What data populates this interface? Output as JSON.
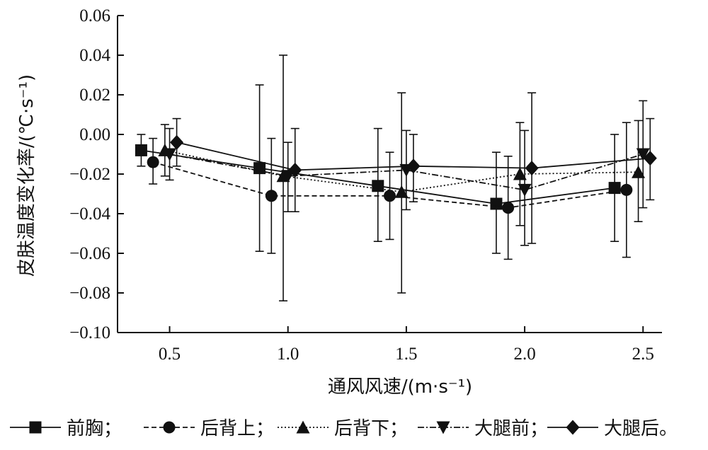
{
  "chart_data": {
    "type": "line",
    "ylabel": "皮肤温度变化率/(℃·s⁻¹)",
    "xlabel": "通风风速/(m·s⁻¹)",
    "xlim": [
      0.28,
      2.58
    ],
    "ylim": [
      -0.1,
      0.06
    ],
    "xticks": [
      0.5,
      1.0,
      1.5,
      2.0,
      2.5
    ],
    "xtick_labels": [
      "0.5",
      "1.0",
      "1.5",
      "2.0",
      "2.5"
    ],
    "yticks": [
      0.06,
      0.04,
      0.02,
      0.0,
      -0.02,
      -0.04,
      -0.06,
      -0.08,
      -0.1
    ],
    "ytick_labels": [
      "0.06",
      "0.04",
      "0.02",
      "0.00",
      "−0.02",
      "−0.04",
      "−0.06",
      "−0.08",
      "−0.10"
    ],
    "grid": false,
    "legend_position": "bottom",
    "series": [
      {
        "name": "前胸",
        "marker": "square",
        "line_style": "solid",
        "x": [
          0.38,
          0.88,
          1.38,
          1.88,
          2.38
        ],
        "y": [
          -0.008,
          -0.017,
          -0.026,
          -0.035,
          -0.027
        ],
        "err_low": [
          -0.016,
          -0.059,
          -0.054,
          -0.06,
          -0.054
        ],
        "err_high": [
          0.0,
          0.025,
          0.003,
          -0.009,
          0.0
        ]
      },
      {
        "name": "后背上",
        "marker": "circle",
        "line_style": "dashed",
        "x": [
          0.43,
          0.93,
          1.43,
          1.93,
          2.43
        ],
        "y": [
          -0.014,
          -0.031,
          -0.031,
          -0.037,
          -0.028
        ],
        "err_low": [
          -0.025,
          -0.06,
          -0.053,
          -0.063,
          -0.062
        ],
        "err_high": [
          -0.002,
          -0.002,
          -0.009,
          -0.011,
          0.006
        ]
      },
      {
        "name": "后背下",
        "marker": "triangle-up",
        "line_style": "dotted",
        "x": [
          0.48,
          0.98,
          1.48,
          1.98,
          2.48
        ],
        "y": [
          -0.008,
          -0.021,
          -0.029,
          -0.02,
          -0.019
        ],
        "err_low": [
          -0.021,
          -0.084,
          -0.08,
          -0.046,
          -0.044
        ],
        "err_high": [
          0.005,
          0.04,
          0.021,
          0.006,
          0.007
        ]
      },
      {
        "name": "大腿前",
        "marker": "triangle-down",
        "line_style": "dash-dot",
        "x": [
          0.5,
          1.0,
          1.5,
          2.0,
          2.5
        ],
        "y": [
          -0.01,
          -0.021,
          -0.018,
          -0.028,
          -0.01
        ],
        "err_low": [
          -0.023,
          -0.039,
          -0.038,
          -0.056,
          -0.037
        ],
        "err_high": [
          0.003,
          -0.004,
          0.002,
          0.002,
          0.017
        ]
      },
      {
        "name": "大腿后",
        "marker": "diamond",
        "line_style": "solid",
        "x": [
          0.53,
          1.03,
          1.53,
          2.03,
          2.53
        ],
        "y": [
          -0.004,
          -0.018,
          -0.016,
          -0.017,
          -0.012
        ],
        "err_low": [
          -0.016,
          -0.039,
          -0.034,
          -0.055,
          -0.033
        ],
        "err_high": [
          0.008,
          0.003,
          0.0,
          0.021,
          0.008
        ]
      }
    ],
    "legend_entries": [
      "前胸；",
      "后背上；",
      "后背下；",
      "大腿前；",
      "大腿后。"
    ]
  }
}
